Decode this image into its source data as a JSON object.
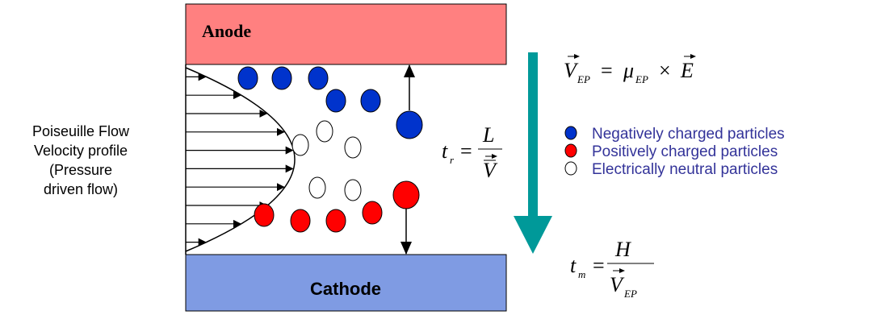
{
  "electrodes": {
    "anode": "Anode",
    "cathode": "Cathode"
  },
  "flow_label": [
    "Poiseuille Flow",
    "Velocity profile",
    "(Pressure",
    "driven flow)"
  ],
  "legend": [
    {
      "label": "Negatively charged particles",
      "color": "#0033cc"
    },
    {
      "label": "Positively charged particles",
      "color": "#ff0000"
    },
    {
      "label": "Electrically neutral particles",
      "color": "#ffffff"
    }
  ],
  "equations": {
    "velocity": {
      "lhs": "V",
      "lhs_sub": "EP",
      "equals": "=",
      "mu": "μ",
      "mu_sub": "EP",
      "times": "×",
      "field": "E"
    },
    "residence": {
      "lhs": "t",
      "lhs_sub": "r",
      "equals": "=",
      "numerator": "L",
      "denominator": "V"
    },
    "migration": {
      "lhs": "t",
      "lhs_sub": "m",
      "equals": "=",
      "numerator": "H",
      "denominator": "V",
      "denominator_sub": "EP"
    }
  }
}
